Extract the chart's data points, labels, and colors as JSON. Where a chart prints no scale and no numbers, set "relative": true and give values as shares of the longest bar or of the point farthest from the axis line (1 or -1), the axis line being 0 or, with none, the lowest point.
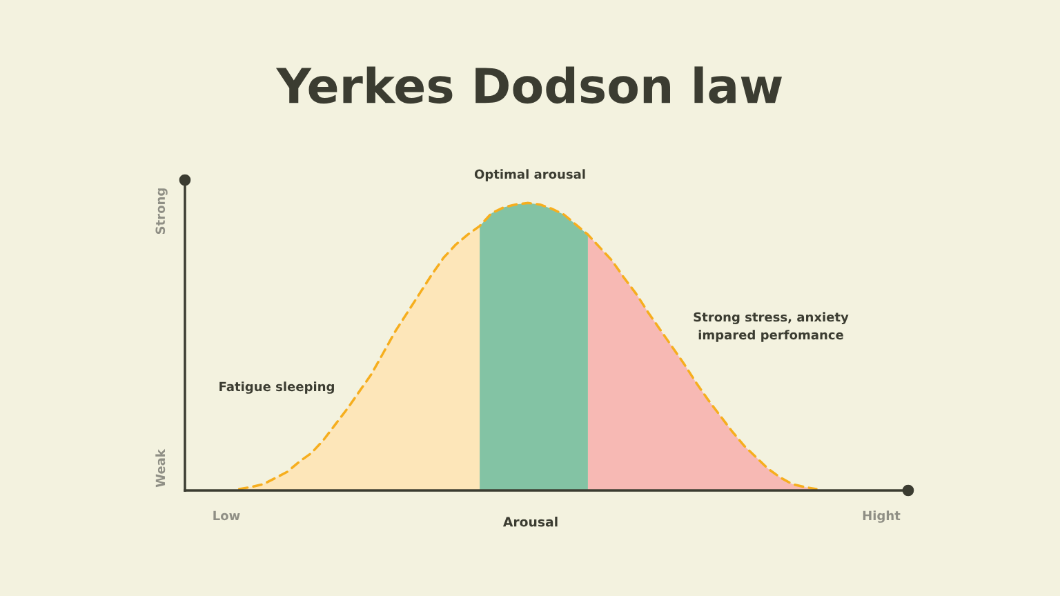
{
  "chart_data": {
    "type": "area",
    "title": "Yerkes Dodson law",
    "xlabel": "Arousal",
    "relative": true,
    "annotations": [
      "Fatigue sleeping",
      "Optimal arousal",
      "Strong stress, anxiety\nimpared perfomance",
      "Low",
      "Hight",
      "Weak",
      "Strong"
    ],
    "categories": [
      null,
      null,
      null,
      null,
      null,
      null,
      null,
      null,
      null,
      null,
      null,
      null,
      null,
      null,
      null,
      null,
      null,
      null,
      null,
      null,
      null,
      null,
      null,
      null,
      null,
      null,
      null,
      null,
      null,
      null,
      null,
      null,
      null,
      null,
      null,
      null,
      null,
      null,
      null,
      null,
      null,
      null,
      null,
      null,
      null,
      null,
      null,
      null,
      null
    ],
    "series": [
      {
        "color": "#fde6b9",
        "values": [
          0.005,
          0.012,
          0.022,
          0.043,
          0.065,
          0.1,
          0.13,
          0.175,
          0.23,
          0.285,
          0.345,
          0.405,
          0.48,
          0.555,
          0.62,
          0.685,
          0.75,
          0.81,
          0.855,
          0.89,
          0.92,
          null,
          null,
          null,
          null,
          null,
          null,
          null,
          null,
          null,
          null,
          null,
          null,
          null,
          null,
          null,
          null,
          null,
          null,
          null,
          null,
          null,
          null,
          null,
          null,
          null,
          null,
          null,
          null
        ]
      },
      {
        "color": "#83c3a4",
        "values": [
          null,
          null,
          null,
          null,
          null,
          null,
          null,
          null,
          null,
          null,
          null,
          null,
          null,
          null,
          null,
          null,
          null,
          null,
          null,
          null,
          0.92,
          0.965,
          0.985,
          0.995,
          1.0,
          0.995,
          0.98,
          0.96,
          0.925,
          0.89,
          null,
          null,
          null,
          null,
          null,
          null,
          null,
          null,
          null,
          null,
          null,
          null,
          null,
          null,
          null,
          null,
          null,
          null,
          null
        ]
      },
      {
        "color": "#f7b9b4",
        "values": [
          null,
          null,
          null,
          null,
          null,
          null,
          null,
          null,
          null,
          null,
          null,
          null,
          null,
          null,
          null,
          null,
          null,
          null,
          null,
          null,
          null,
          null,
          null,
          null,
          null,
          null,
          null,
          null,
          null,
          0.89,
          0.845,
          0.8,
          0.74,
          0.685,
          0.62,
          0.56,
          0.5,
          0.44,
          0.375,
          0.315,
          0.26,
          0.205,
          0.155,
          0.115,
          0.075,
          0.045,
          0.022,
          0.012,
          0.005
        ]
      },
      {
        "type": "line",
        "color": "#f6ae1e",
        "line_style": "dashed",
        "values": [
          0.005,
          0.012,
          0.022,
          0.043,
          0.065,
          0.1,
          0.13,
          0.175,
          0.23,
          0.285,
          0.345,
          0.405,
          0.48,
          0.555,
          0.62,
          0.685,
          0.75,
          0.81,
          0.855,
          0.89,
          0.92,
          0.965,
          0.985,
          0.995,
          1.0,
          0.995,
          0.98,
          0.96,
          0.925,
          0.89,
          0.845,
          0.8,
          0.74,
          0.685,
          0.62,
          0.56,
          0.5,
          0.44,
          0.375,
          0.315,
          0.26,
          0.205,
          0.155,
          0.115,
          0.075,
          0.045,
          0.022,
          0.012,
          0.005
        ]
      }
    ]
  }
}
